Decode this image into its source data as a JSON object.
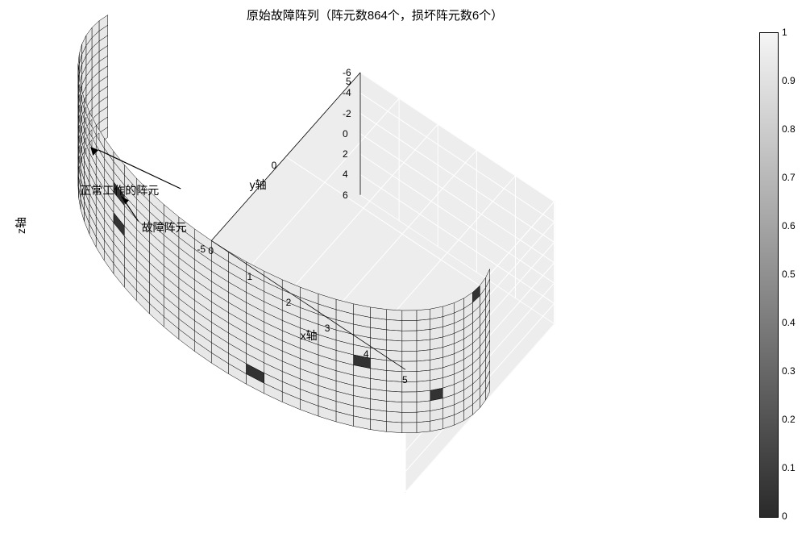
{
  "title": "原始故障阵列（阵元数864个，损坏阵元数6个）",
  "axes": {
    "x": {
      "label": "x轴",
      "min": 0,
      "max": 5,
      "ticks": [
        0,
        1,
        2,
        3,
        4,
        5
      ]
    },
    "y": {
      "label": "y轴",
      "min": -5,
      "max": 5,
      "ticks": [
        -5,
        0,
        5
      ]
    },
    "z": {
      "label": "z轴",
      "min": -6,
      "max": 6,
      "ticks": [
        -6,
        -4,
        -2,
        0,
        2,
        4,
        6
      ]
    }
  },
  "view": {
    "azimuth_deg": -37.5,
    "elevation_deg": 30
  },
  "colorbar": {
    "min": 0,
    "max": 1,
    "ticks": [
      0,
      0.1,
      0.2,
      0.3,
      0.4,
      0.5,
      0.6,
      0.7,
      0.8,
      0.9,
      1
    ],
    "gradient_top": "#f5f5f5",
    "gradient_bottom": "#2a2a2a"
  },
  "style": {
    "normal_face": "#e8e8e8",
    "fault_face": "#333333",
    "grid_edge": "#000000",
    "axes_plane_face": "#ededed",
    "axes_plane_grid": "#ffffff",
    "background": "#ffffff",
    "title_fontsize": 15,
    "label_fontsize": 14,
    "tick_fontsize": 12
  },
  "cylinder_array": {
    "type": "cylindrical-surface-grid",
    "n_cols": 72,
    "n_rows": 12,
    "angle_start_deg": 90,
    "angle_end_deg": 450,
    "col_start": 16,
    "col_end": 55,
    "radius": 5,
    "z_min": -6,
    "z_max": 6,
    "faults": [
      {
        "row": 0,
        "col": 53
      },
      {
        "row": 3,
        "col": 29
      },
      {
        "row": 5,
        "col": 44
      },
      {
        "row": 6,
        "col": 29
      },
      {
        "row": 8,
        "col": 49
      },
      {
        "row": 10,
        "col": 38
      }
    ]
  },
  "annotations": {
    "fault_label": "故障阵元",
    "normal_label": "正常工作的阵元"
  }
}
